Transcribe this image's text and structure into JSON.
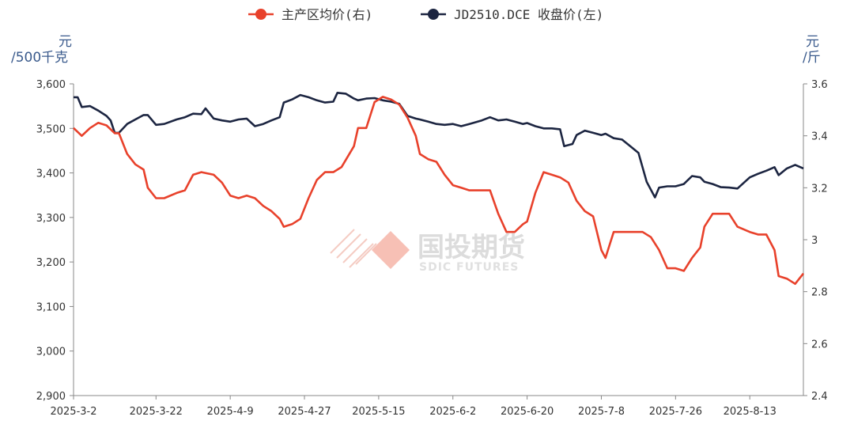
{
  "chart_data": {
    "type": "line",
    "title": "",
    "legend": {
      "placement": "top-center",
      "entries": [
        "主产区均价(右)",
        "JD2510.DCE 收盘价(左)"
      ]
    },
    "x_tick_labels": [
      "2025-3-2",
      "2025-3-22",
      "2025-4-9",
      "2025-4-27",
      "2025-5-15",
      "2025-6-2",
      "2025-6-20",
      "2025-7-8",
      "2025-7-26",
      "2025-8-13"
    ],
    "x_range": [
      "2025-03-02",
      "2025-08-26"
    ],
    "y_left": {
      "unit_label_1": "元",
      "unit_label_2": "/500千克",
      "min": 2900,
      "max": 3600,
      "ticks": [
        "2,900",
        "3,000",
        "3,100",
        "3,200",
        "3,300",
        "3,400",
        "3,500",
        "3,600"
      ]
    },
    "y_right": {
      "unit_label_1": "元",
      "unit_label_2": "/斤",
      "min": 2.4,
      "max": 3.6,
      "ticks": [
        "2.4",
        "2.6",
        "2.8",
        "3",
        "3.2",
        "3.4",
        "3.6"
      ]
    },
    "grid": false,
    "series": [
      {
        "name": "主产区均价(右)",
        "axis": "right",
        "color": "#e8412b",
        "points": [
          [
            "2025-03-02",
            3.43
          ],
          [
            "2025-03-04",
            3.4
          ],
          [
            "2025-03-06",
            3.43
          ],
          [
            "2025-03-08",
            3.45
          ],
          [
            "2025-03-10",
            3.44
          ],
          [
            "2025-03-12",
            3.41
          ],
          [
            "2025-03-13",
            3.41
          ],
          [
            "2025-03-15",
            3.33
          ],
          [
            "2025-03-17",
            3.29
          ],
          [
            "2025-03-19",
            3.27
          ],
          [
            "2025-03-20",
            3.2
          ],
          [
            "2025-03-22",
            3.16
          ],
          [
            "2025-03-24",
            3.16
          ],
          [
            "2025-03-27",
            3.18
          ],
          [
            "2025-03-29",
            3.19
          ],
          [
            "2025-03-31",
            3.25
          ],
          [
            "2025-04-02",
            3.26
          ],
          [
            "2025-04-05",
            3.25
          ],
          [
            "2025-04-07",
            3.22
          ],
          [
            "2025-04-09",
            3.17
          ],
          [
            "2025-04-11",
            3.16
          ],
          [
            "2025-04-13",
            3.17
          ],
          [
            "2025-04-15",
            3.16
          ],
          [
            "2025-04-17",
            3.13
          ],
          [
            "2025-04-19",
            3.11
          ],
          [
            "2025-04-21",
            3.08
          ],
          [
            "2025-04-22",
            3.05
          ],
          [
            "2025-04-24",
            3.06
          ],
          [
            "2025-04-26",
            3.08
          ],
          [
            "2025-04-28",
            3.16
          ],
          [
            "2025-04-30",
            3.23
          ],
          [
            "2025-05-02",
            3.26
          ],
          [
            "2025-05-04",
            3.26
          ],
          [
            "2025-05-06",
            3.28
          ],
          [
            "2025-05-09",
            3.36
          ],
          [
            "2025-05-10",
            3.43
          ],
          [
            "2025-05-12",
            3.43
          ],
          [
            "2025-05-14",
            3.53
          ],
          [
            "2025-05-16",
            3.55
          ],
          [
            "2025-05-18",
            3.54
          ],
          [
            "2025-05-20",
            3.52
          ],
          [
            "2025-05-22",
            3.47
          ],
          [
            "2025-05-24",
            3.4
          ],
          [
            "2025-05-25",
            3.33
          ],
          [
            "2025-05-27",
            3.31
          ],
          [
            "2025-05-29",
            3.3
          ],
          [
            "2025-05-31",
            3.25
          ],
          [
            "2025-06-02",
            3.21
          ],
          [
            "2025-06-04",
            3.2
          ],
          [
            "2025-06-06",
            3.19
          ],
          [
            "2025-06-09",
            3.19
          ],
          [
            "2025-06-11",
            3.19
          ],
          [
            "2025-06-13",
            3.1
          ],
          [
            "2025-06-15",
            3.03
          ],
          [
            "2025-06-17",
            3.03
          ],
          [
            "2025-06-19",
            3.06
          ],
          [
            "2025-06-20",
            3.07
          ],
          [
            "2025-06-22",
            3.18
          ],
          [
            "2025-06-24",
            3.26
          ],
          [
            "2025-06-26",
            3.25
          ],
          [
            "2025-06-28",
            3.24
          ],
          [
            "2025-06-30",
            3.22
          ],
          [
            "2025-07-02",
            3.15
          ],
          [
            "2025-07-04",
            3.11
          ],
          [
            "2025-07-06",
            3.09
          ],
          [
            "2025-07-08",
            2.96
          ],
          [
            "2025-07-09",
            2.93
          ],
          [
            "2025-07-11",
            3.03
          ],
          [
            "2025-07-13",
            3.03
          ],
          [
            "2025-07-15",
            3.03
          ],
          [
            "2025-07-18",
            3.03
          ],
          [
            "2025-07-20",
            3.01
          ],
          [
            "2025-07-22",
            2.96
          ],
          [
            "2025-07-24",
            2.89
          ],
          [
            "2025-07-26",
            2.89
          ],
          [
            "2025-07-28",
            2.88
          ],
          [
            "2025-07-30",
            2.93
          ],
          [
            "2025-08-01",
            2.97
          ],
          [
            "2025-08-02",
            3.05
          ],
          [
            "2025-08-04",
            3.1
          ],
          [
            "2025-08-06",
            3.1
          ],
          [
            "2025-08-08",
            3.1
          ],
          [
            "2025-08-10",
            3.05
          ],
          [
            "2025-08-13",
            3.03
          ],
          [
            "2025-08-15",
            3.02
          ],
          [
            "2025-08-17",
            3.02
          ],
          [
            "2025-08-19",
            2.96
          ],
          [
            "2025-08-20",
            2.86
          ],
          [
            "2025-08-22",
            2.85
          ],
          [
            "2025-08-24",
            2.83
          ],
          [
            "2025-08-26",
            2.87
          ]
        ]
      },
      {
        "name": "JD2510.DCE 收盘价(左)",
        "axis": "left",
        "color": "#1c2541",
        "points": [
          [
            "2025-03-02",
            3570
          ],
          [
            "2025-03-03",
            3570
          ],
          [
            "2025-03-04",
            3548
          ],
          [
            "2025-03-06",
            3550
          ],
          [
            "2025-03-08",
            3540
          ],
          [
            "2025-03-10",
            3528
          ],
          [
            "2025-03-11",
            3518
          ],
          [
            "2025-03-12",
            3490
          ],
          [
            "2025-03-13",
            3490
          ],
          [
            "2025-03-15",
            3510
          ],
          [
            "2025-03-17",
            3520
          ],
          [
            "2025-03-19",
            3530
          ],
          [
            "2025-03-20",
            3530
          ],
          [
            "2025-03-22",
            3508
          ],
          [
            "2025-03-24",
            3510
          ],
          [
            "2025-03-27",
            3520
          ],
          [
            "2025-03-29",
            3525
          ],
          [
            "2025-03-31",
            3533
          ],
          [
            "2025-04-02",
            3532
          ],
          [
            "2025-04-03",
            3545
          ],
          [
            "2025-04-05",
            3522
          ],
          [
            "2025-04-07",
            3518
          ],
          [
            "2025-04-09",
            3515
          ],
          [
            "2025-04-11",
            3520
          ],
          [
            "2025-04-13",
            3522
          ],
          [
            "2025-04-15",
            3505
          ],
          [
            "2025-04-17",
            3510
          ],
          [
            "2025-04-19",
            3518
          ],
          [
            "2025-04-21",
            3525
          ],
          [
            "2025-04-22",
            3558
          ],
          [
            "2025-04-24",
            3565
          ],
          [
            "2025-04-26",
            3575
          ],
          [
            "2025-04-28",
            3570
          ],
          [
            "2025-04-30",
            3563
          ],
          [
            "2025-05-02",
            3558
          ],
          [
            "2025-05-04",
            3560
          ],
          [
            "2025-05-05",
            3580
          ],
          [
            "2025-05-07",
            3578
          ],
          [
            "2025-05-09",
            3567
          ],
          [
            "2025-05-10",
            3563
          ],
          [
            "2025-05-12",
            3567
          ],
          [
            "2025-05-14",
            3568
          ],
          [
            "2025-05-16",
            3563
          ],
          [
            "2025-05-18",
            3560
          ],
          [
            "2025-05-20",
            3555
          ],
          [
            "2025-05-22",
            3528
          ],
          [
            "2025-05-24",
            3522
          ],
          [
            "2025-05-25",
            3520
          ],
          [
            "2025-05-27",
            3515
          ],
          [
            "2025-05-29",
            3510
          ],
          [
            "2025-05-31",
            3508
          ],
          [
            "2025-06-02",
            3510
          ],
          [
            "2025-06-04",
            3505
          ],
          [
            "2025-06-06",
            3510
          ],
          [
            "2025-06-09",
            3518
          ],
          [
            "2025-06-11",
            3525
          ],
          [
            "2025-06-13",
            3518
          ],
          [
            "2025-06-15",
            3520
          ],
          [
            "2025-06-17",
            3515
          ],
          [
            "2025-06-19",
            3510
          ],
          [
            "2025-06-20",
            3512
          ],
          [
            "2025-06-22",
            3505
          ],
          [
            "2025-06-24",
            3500
          ],
          [
            "2025-06-26",
            3500
          ],
          [
            "2025-06-28",
            3498
          ],
          [
            "2025-06-29",
            3460
          ],
          [
            "2025-07-01",
            3465
          ],
          [
            "2025-07-02",
            3485
          ],
          [
            "2025-07-04",
            3495
          ],
          [
            "2025-07-06",
            3490
          ],
          [
            "2025-07-08",
            3485
          ],
          [
            "2025-07-09",
            3488
          ],
          [
            "2025-07-11",
            3478
          ],
          [
            "2025-07-13",
            3475
          ],
          [
            "2025-07-15",
            3460
          ],
          [
            "2025-07-17",
            3445
          ],
          [
            "2025-07-19",
            3380
          ],
          [
            "2025-07-21",
            3345
          ],
          [
            "2025-07-22",
            3367
          ],
          [
            "2025-07-24",
            3370
          ],
          [
            "2025-07-26",
            3370
          ],
          [
            "2025-07-28",
            3375
          ],
          [
            "2025-07-30",
            3393
          ],
          [
            "2025-08-01",
            3390
          ],
          [
            "2025-08-02",
            3380
          ],
          [
            "2025-08-04",
            3375
          ],
          [
            "2025-08-06",
            3368
          ],
          [
            "2025-08-08",
            3367
          ],
          [
            "2025-08-10",
            3365
          ],
          [
            "2025-08-13",
            3390
          ],
          [
            "2025-08-15",
            3398
          ],
          [
            "2025-08-17",
            3405
          ],
          [
            "2025-08-19",
            3413
          ],
          [
            "2025-08-20",
            3395
          ],
          [
            "2025-08-22",
            3410
          ],
          [
            "2025-08-24",
            3418
          ],
          [
            "2025-08-26",
            3410
          ]
        ]
      }
    ]
  }
}
